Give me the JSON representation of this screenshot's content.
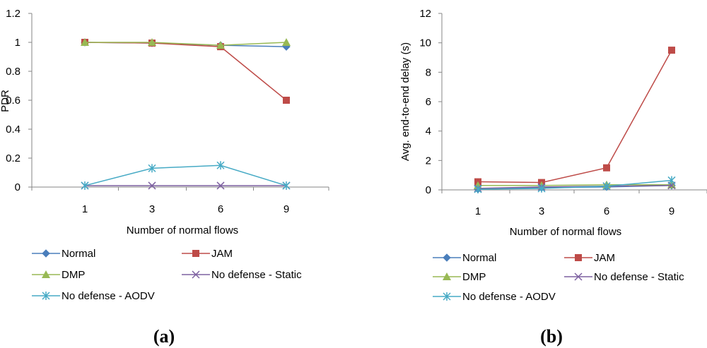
{
  "chart_data": [
    {
      "type": "line",
      "panel_label": "(a)",
      "xlabel": "Number of normal flows",
      "ylabel": "PDR",
      "categories": [
        "1",
        "3",
        "6",
        "9"
      ],
      "ylim": [
        0,
        1.2
      ],
      "yticks": [
        "0",
        "0.2",
        "0.4",
        "0.6",
        "0.8",
        "1",
        "1.2"
      ],
      "grid": false,
      "series": [
        {
          "name": "Normal",
          "color": "#4a7ebb",
          "marker": "diamond",
          "values": [
            1.0,
            0.995,
            0.98,
            0.97
          ]
        },
        {
          "name": "JAM",
          "color": "#be4b48",
          "marker": "square",
          "values": [
            1.0,
            0.995,
            0.97,
            0.6
          ]
        },
        {
          "name": "DMP",
          "color": "#98b954",
          "marker": "triangle",
          "values": [
            1.0,
            1.0,
            0.98,
            1.0
          ]
        },
        {
          "name": "No defense - Static",
          "color": "#7d60a0",
          "marker": "x",
          "values": [
            0.01,
            0.01,
            0.01,
            0.01
          ]
        },
        {
          "name": "No defense - AODV",
          "color": "#46aac5",
          "marker": "star",
          "values": [
            0.01,
            0.13,
            0.15,
            0.01
          ]
        }
      ]
    },
    {
      "type": "line",
      "panel_label": "(b)",
      "xlabel": "Number of normal flows",
      "ylabel": "Avg. end-to-end delay (s)",
      "categories": [
        "1",
        "3",
        "6",
        "9"
      ],
      "ylim": [
        0,
        12
      ],
      "yticks": [
        "0",
        "2",
        "4",
        "6",
        "8",
        "10",
        "12"
      ],
      "grid": false,
      "series": [
        {
          "name": "Normal",
          "color": "#4a7ebb",
          "marker": "diamond",
          "values": [
            0.05,
            0.15,
            0.2,
            0.3
          ]
        },
        {
          "name": "JAM",
          "color": "#be4b48",
          "marker": "square",
          "values": [
            0.55,
            0.5,
            1.5,
            9.5
          ]
        },
        {
          "name": "DMP",
          "color": "#98b954",
          "marker": "triangle",
          "values": [
            0.3,
            0.3,
            0.35,
            0.35
          ]
        },
        {
          "name": "No defense - Static",
          "color": "#7d60a0",
          "marker": "x",
          "values": [
            0.1,
            0.2,
            0.25,
            0.3
          ]
        },
        {
          "name": "No defense - AODV",
          "color": "#46aac5",
          "marker": "star",
          "values": [
            0.05,
            0.1,
            0.25,
            0.65
          ]
        }
      ]
    }
  ]
}
